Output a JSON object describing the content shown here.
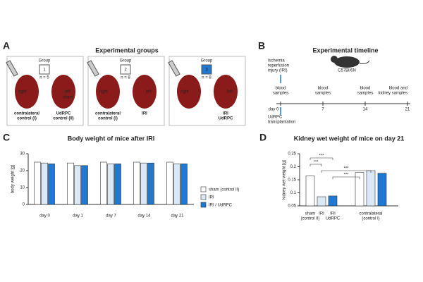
{
  "panels": {
    "a": "A",
    "b": "B",
    "c": "C",
    "d": "D"
  },
  "groups_panel": {
    "title": "Experimental groups",
    "groups": [
      {
        "label": "Group",
        "number": "1",
        "n": "n = 5",
        "right": "right",
        "left": "left",
        "extra": "sham",
        "bottom_left": [
          "contralateral",
          "control (I)"
        ],
        "bottom_right": [
          "UdRPC",
          "control (II)"
        ]
      },
      {
        "label": "Group",
        "number": "2",
        "n": "n = 8",
        "right": "right",
        "left": "left",
        "bottom_left": [
          "contralateral",
          "control (I)"
        ],
        "bottom_right": [
          "IRI"
        ]
      },
      {
        "label": "Group",
        "number": "3",
        "n": "n = 8",
        "right": "right",
        "left": "left",
        "bottom_left": [],
        "bottom_right": [
          "IRI",
          "UdRPC"
        ]
      }
    ]
  },
  "timeline": {
    "title": "Experimental timeline",
    "mouse": "C57Bl/6N",
    "event_top": [
      "ischemia",
      "reperfusion",
      "injury (IRI)"
    ],
    "event_bottom": [
      "UdRPC",
      "transplantation"
    ],
    "ticks": [
      {
        "value": 0,
        "label": "day 0"
      },
      7,
      14,
      21
    ],
    "xlim": [
      0,
      21
    ],
    "samples": [
      [
        "blood",
        "samples"
      ],
      [
        "blood",
        "samples"
      ],
      [
        "blood",
        "samples"
      ],
      [
        "blood and",
        "kidney samples"
      ]
    ]
  },
  "chart_data": [
    {
      "type": "bar",
      "title": "Body weight of mice after IRI",
      "ylabel": "body weight [g]",
      "categories": [
        "day 0",
        "day 1",
        "day 7",
        "day 14",
        "day 21"
      ],
      "ylim": [
        0,
        30
      ],
      "yticks": [
        0,
        10,
        20,
        30
      ],
      "legend": "right",
      "series": [
        {
          "name": "sham (control II)",
          "color": "#ffffff",
          "values": [
            25,
            24.5,
            25,
            25,
            25
          ]
        },
        {
          "name": "IRI",
          "color": "#dbe8f6",
          "values": [
            24.5,
            23,
            24,
            24.5,
            24
          ]
        },
        {
          "name": "IRI / UdRPC",
          "color": "#1f78d1",
          "values": [
            24,
            23,
            24,
            24.5,
            24
          ]
        }
      ]
    },
    {
      "type": "bar",
      "title": "Kidney wet weight of mice on day 21",
      "ylabel": "kidney wet weight [g]",
      "ylim": [
        0.05,
        0.25
      ],
      "yticks": [
        0.05,
        0.1,
        0.15,
        0.2,
        0.25
      ],
      "values": [
        0.165,
        0.085,
        0.088,
        0.178,
        0.185,
        0.175
      ],
      "colors": [
        "#ffffff",
        "#dbe8f6",
        "#1f78d1",
        "#ffffff",
        "#dbe8f6",
        "#1f78d1"
      ],
      "groups": [
        {
          "label": [
            "sham",
            "(control II)"
          ],
          "bars": [
            0
          ]
        },
        {
          "label": [
            "IRI"
          ],
          "bars": [
            1
          ]
        },
        {
          "label": [
            "IRI",
            "UdRPC"
          ],
          "bars": [
            2
          ]
        },
        {
          "label": [
            "contralateral",
            "(control I)"
          ],
          "bars": [
            3,
            4,
            5
          ]
        }
      ],
      "annotations": [
        {
          "text": "***",
          "from": 0,
          "to": 2
        },
        {
          "text": "***",
          "from": 0,
          "to": 1
        },
        {
          "text": "***",
          "from": 1,
          "to": 4
        },
        {
          "text": "***",
          "from": 2,
          "to": 3
        }
      ]
    }
  ]
}
